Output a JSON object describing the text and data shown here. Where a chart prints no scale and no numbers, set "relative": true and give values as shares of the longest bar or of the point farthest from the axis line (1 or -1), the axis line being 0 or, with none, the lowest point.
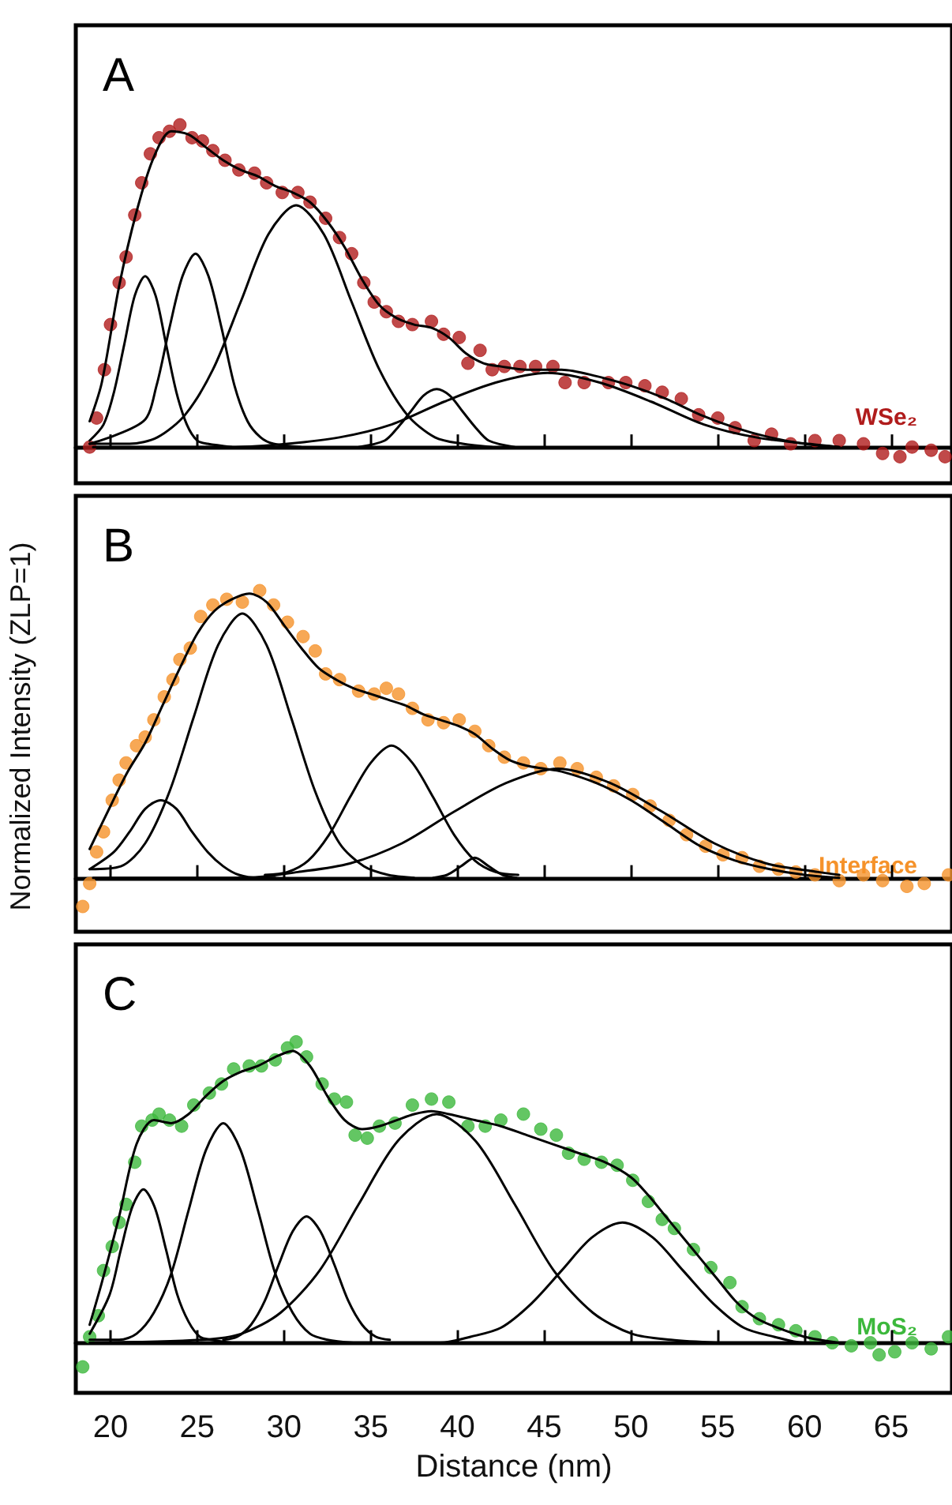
{
  "chart_data": [
    {
      "type": "line",
      "title": "A",
      "relative": true,
      "tick_labels": false,
      "xlim": [
        18,
        68.5
      ],
      "xticks": [
        20,
        25,
        30,
        35,
        40,
        45,
        50,
        55,
        60,
        65
      ],
      "marker": "none",
      "line_style": "solid",
      "series": [
        {
          "type": "scatter",
          "marker": "circle",
          "name": "WSe₂",
          "color": "#b01c1c",
          "x": [
            18.8,
            19.2,
            19.65,
            20,
            20.5,
            20.9,
            21.4,
            21.8,
            22.3,
            22.8,
            23.4,
            24,
            24.7,
            25.3,
            25.9,
            26.6,
            27.4,
            28.3,
            29,
            29.9,
            30.8,
            31.5,
            32.4,
            33.2,
            33.9,
            34.6,
            35.2,
            35.9,
            36.6,
            37.4,
            38.5,
            39.2,
            40.1,
            40.6,
            41.3,
            42,
            42.7,
            43.6,
            44.5,
            45.5,
            46.2,
            47.3,
            48.7,
            49.7,
            50.8,
            51.8,
            52.9,
            53.9,
            55,
            56,
            57.1,
            58.1,
            59.2,
            60.6,
            62,
            63.4,
            64.5,
            65.5,
            66.2,
            67.3,
            68.1
          ],
          "values": [
            0,
            0.09,
            0.24,
            0.38,
            0.51,
            0.59,
            0.72,
            0.82,
            0.91,
            0.96,
            0.98,
            1,
            0.96,
            0.95,
            0.92,
            0.89,
            0.86,
            0.85,
            0.82,
            0.79,
            0.79,
            0.76,
            0.71,
            0.65,
            0.6,
            0.51,
            0.45,
            0.42,
            0.39,
            0.38,
            0.39,
            0.35,
            0.34,
            0.26,
            0.3,
            0.24,
            0.25,
            0.25,
            0.25,
            0.25,
            0.2,
            0.2,
            0.2,
            0.2,
            0.19,
            0.17,
            0.15,
            0.1,
            0.09,
            0.06,
            0.02,
            0.04,
            0.01,
            0.02,
            0.02,
            0.01,
            -0.02,
            -0.03,
            0,
            -0.01,
            -0.03
          ]
        },
        {
          "color": "#000000",
          "x": [
            18.8,
            19.5,
            20.5,
            21.5,
            22.5,
            23.5,
            24.5,
            25.5,
            26.5,
            27.5,
            28.5,
            29.5,
            30.5,
            31.5,
            32.5,
            33.5,
            34.5,
            35.5,
            36.5,
            37.5,
            38.5,
            39.5,
            40.5,
            41.5,
            42.5,
            44,
            46,
            48,
            50,
            52,
            54,
            56,
            58,
            60,
            62
          ],
          "values": [
            0.08,
            0.2,
            0.5,
            0.73,
            0.9,
            0.98,
            0.97,
            0.93,
            0.89,
            0.86,
            0.84,
            0.81,
            0.79,
            0.76,
            0.7,
            0.62,
            0.52,
            0.44,
            0.4,
            0.38,
            0.37,
            0.34,
            0.29,
            0.26,
            0.25,
            0.24,
            0.24,
            0.22,
            0.19,
            0.15,
            0.1,
            0.06,
            0.03,
            0.01,
            0
          ]
        },
        {
          "color": "#000000",
          "x": [
            18.8,
            19.6,
            20.2,
            20.8,
            21.4,
            22,
            22.6,
            23.2,
            23.8,
            24.4,
            25,
            25.6,
            27
          ],
          "values": [
            0.02,
            0.07,
            0.17,
            0.32,
            0.47,
            0.53,
            0.47,
            0.32,
            0.17,
            0.07,
            0.02,
            0.01,
            0
          ]
        },
        {
          "color": "#000000",
          "x": [
            18.8,
            21.9,
            22.65,
            23.4,
            24.15,
            24.9,
            25.65,
            26.4,
            27.15,
            27.9,
            28.65,
            29.4,
            31
          ],
          "values": [
            0.01,
            0.08,
            0.19,
            0.37,
            0.53,
            0.6,
            0.53,
            0.37,
            0.19,
            0.08,
            0.03,
            0.01,
            0
          ]
        },
        {
          "color": "#000000",
          "x": [
            18.8,
            21.1,
            22.7,
            24.3,
            25.9,
            27.5,
            29.1,
            30.7,
            32.3,
            33.9,
            35.5,
            37.1,
            38.7,
            40.3,
            42
          ],
          "values": [
            0.01,
            0.01,
            0.03,
            0.1,
            0.24,
            0.45,
            0.66,
            0.75,
            0.66,
            0.45,
            0.24,
            0.1,
            0.03,
            0.01,
            0
          ]
        },
        {
          "color": "#000000",
          "x": [
            34.3,
            35.8,
            36.55,
            37.3,
            38.05,
            38.8,
            39.55,
            40.3,
            41.05,
            41.8,
            43.3
          ],
          "values": [
            0,
            0.02,
            0.06,
            0.11,
            0.16,
            0.18,
            0.16,
            0.11,
            0.06,
            0.02,
            0
          ]
        },
        {
          "color": "#000000",
          "x": [
            19,
            27.2,
            30.2,
            33.2,
            36.2,
            39.2,
            42.2,
            45.2,
            48.2,
            51.2,
            54.2,
            57.2,
            60.2,
            62
          ],
          "values": [
            0,
            0,
            0.01,
            0.03,
            0.07,
            0.14,
            0.2,
            0.23,
            0.2,
            0.14,
            0.07,
            0.03,
            0.01,
            0
          ]
        }
      ]
    },
    {
      "type": "line",
      "title": "B",
      "ylabel": "Normalized Intensity (ZLP=1)",
      "relative": true,
      "tick_labels": false,
      "xlim": [
        18,
        68.5
      ],
      "xticks": [
        20,
        25,
        30,
        35,
        40,
        45,
        50,
        55,
        60,
        65
      ],
      "marker": "none",
      "line_style": "solid",
      "series": [
        {
          "type": "scatter",
          "marker": "circle",
          "name": "Interface",
          "color": "#f5922a",
          "x": [
            18.4,
            18.8,
            19.2,
            19.6,
            20.1,
            20.5,
            20.9,
            21.5,
            22,
            22.5,
            23.1,
            23.6,
            24,
            24.6,
            25.2,
            25.9,
            26.7,
            27.6,
            28.6,
            29.4,
            30.2,
            31.1,
            31.8,
            32.4,
            33.2,
            34.3,
            35.2,
            35.9,
            36.6,
            37.4,
            38.3,
            39.2,
            40.1,
            41,
            41.8,
            42.7,
            43.8,
            44.8,
            45.9,
            46.9,
            48,
            49,
            50.1,
            51.1,
            52.2,
            53.2,
            54.3,
            55.3,
            56.4,
            57.4,
            58.5,
            59.5,
            60.6,
            62,
            63.4,
            64.5,
            65.9,
            66.9,
            68.3
          ],
          "values": [
            -0.1,
            -0.02,
            0.09,
            0.16,
            0.27,
            0.34,
            0.4,
            0.46,
            0.49,
            0.55,
            0.63,
            0.69,
            0.76,
            0.8,
            0.91,
            0.95,
            0.97,
            0.96,
            1,
            0.95,
            0.89,
            0.84,
            0.79,
            0.71,
            0.69,
            0.65,
            0.64,
            0.66,
            0.64,
            0.59,
            0.55,
            0.54,
            0.55,
            0.51,
            0.46,
            0.42,
            0.4,
            0.38,
            0.4,
            0.38,
            0.35,
            0.32,
            0.29,
            0.25,
            0.2,
            0.15,
            0.11,
            0.08,
            0.07,
            0.04,
            0.03,
            0.02,
            0.01,
            -0.01,
            0.01,
            -0.01,
            -0.03,
            -0.02,
            0.01
          ]
        },
        {
          "color": "#000000",
          "x": [
            18.8,
            20,
            21,
            22,
            23,
            24,
            25,
            26,
            27,
            28,
            29,
            30,
            31,
            32,
            33,
            34,
            35,
            36,
            37,
            38,
            39,
            40,
            41,
            42,
            43,
            44,
            45,
            46,
            48,
            50,
            52,
            54,
            56,
            58,
            60,
            62
          ],
          "values": [
            0.1,
            0.25,
            0.37,
            0.47,
            0.6,
            0.73,
            0.85,
            0.93,
            0.97,
            0.99,
            0.96,
            0.88,
            0.8,
            0.73,
            0.69,
            0.66,
            0.64,
            0.62,
            0.6,
            0.57,
            0.55,
            0.53,
            0.5,
            0.45,
            0.41,
            0.39,
            0.38,
            0.37,
            0.33,
            0.27,
            0.19,
            0.11,
            0.06,
            0.03,
            0.01,
            0
          ]
        },
        {
          "color": "#000000",
          "x": [
            18.8,
            20.2,
            21.1,
            22,
            22.9,
            23.8,
            24.7,
            25.6,
            26.5,
            27.4,
            28.5,
            29.5
          ],
          "values": [
            0.03,
            0.09,
            0.16,
            0.24,
            0.27,
            0.24,
            0.16,
            0.09,
            0.04,
            0.01,
            0,
            0
          ]
        },
        {
          "color": "#000000",
          "x": [
            18.8,
            20.6,
            22,
            23.4,
            24.8,
            26.2,
            27.6,
            29,
            30.4,
            31.8,
            33.2,
            34.6,
            36,
            37.5
          ],
          "values": [
            0.03,
            0.04,
            0.12,
            0.3,
            0.56,
            0.81,
            0.92,
            0.81,
            0.56,
            0.3,
            0.12,
            0.04,
            0.01,
            0
          ]
        },
        {
          "color": "#000000",
          "x": [
            28.9,
            30.2,
            31.4,
            32.6,
            33.8,
            35,
            36.2,
            37.4,
            38.6,
            39.8,
            41,
            42.2,
            43.5
          ],
          "values": [
            0.01,
            0.02,
            0.06,
            0.15,
            0.28,
            0.4,
            0.46,
            0.4,
            0.28,
            0.15,
            0.06,
            0.02,
            0.01
          ]
        },
        {
          "color": "#000000",
          "x": [
            38.6,
            39.4,
            40.2,
            41,
            41.8,
            42.6,
            43.4
          ],
          "values": [
            0,
            0.01,
            0.04,
            0.07,
            0.04,
            0.01,
            0
          ]
        },
        {
          "color": "#000000",
          "x": [
            19,
            27.8,
            30.8,
            33.8,
            36.8,
            39.8,
            42.8,
            45.8,
            48.8,
            51.8,
            54.8,
            57.8,
            60.8,
            62
          ],
          "values": [
            0,
            0,
            0.02,
            0.05,
            0.12,
            0.23,
            0.33,
            0.38,
            0.33,
            0.23,
            0.12,
            0.05,
            0.02,
            0.01
          ]
        }
      ]
    },
    {
      "type": "line",
      "title": "C",
      "xlabel": "Distance (nm)",
      "relative": true,
      "tick_labels": "x",
      "xlim": [
        18,
        68.5
      ],
      "xticks": [
        20,
        25,
        30,
        35,
        40,
        45,
        50,
        55,
        60,
        65
      ],
      "marker": "none",
      "line_style": "solid",
      "series": [
        {
          "type": "scatter",
          "marker": "circle",
          "name": "MoS₂",
          "color": "#3cb83c",
          "x": [
            18.4,
            18.8,
            19.3,
            19.6,
            20.1,
            20.5,
            20.9,
            21.4,
            21.8,
            22.4,
            22.8,
            23.4,
            24.1,
            24.8,
            25.7,
            26.4,
            27.1,
            28,
            28.7,
            29.5,
            30.2,
            30.7,
            31.3,
            32.2,
            32.9,
            33.6,
            34.1,
            34.8,
            35.5,
            36.4,
            37.4,
            38.5,
            39.5,
            40.6,
            41.6,
            42.5,
            43.8,
            44.8,
            45.7,
            46.4,
            47.3,
            48.3,
            49.2,
            50.1,
            51,
            51.8,
            52.5,
            53.6,
            54.6,
            55.7,
            56.4,
            57.4,
            58.5,
            59.5,
            60.6,
            61.6,
            62.7,
            63.8,
            64.3,
            65.2,
            66.2,
            67.3,
            68.3
          ],
          "values": [
            -0.08,
            0.02,
            0.09,
            0.24,
            0.32,
            0.4,
            0.46,
            0.6,
            0.72,
            0.74,
            0.76,
            0.74,
            0.72,
            0.79,
            0.83,
            0.86,
            0.91,
            0.92,
            0.92,
            0.94,
            0.98,
            1,
            0.95,
            0.86,
            0.81,
            0.8,
            0.69,
            0.68,
            0.72,
            0.73,
            0.79,
            0.81,
            0.8,
            0.72,
            0.72,
            0.74,
            0.76,
            0.71,
            0.69,
            0.63,
            0.61,
            0.6,
            0.59,
            0.54,
            0.47,
            0.41,
            0.38,
            0.31,
            0.25,
            0.2,
            0.12,
            0.08,
            0.06,
            0.04,
            0.02,
            0,
            -0.01,
            0,
            -0.04,
            -0.03,
            0,
            -0.02,
            0.02
          ]
        },
        {
          "color": "#000000",
          "x": [
            18.8,
            19.5,
            20.5,
            21.5,
            22.5,
            23.5,
            24.5,
            25.5,
            26.5,
            27.5,
            28.5,
            29.5,
            30.5,
            31.5,
            32.5,
            33.5,
            34.5,
            35.5,
            36.5,
            37.5,
            38.5,
            39.5,
            41,
            42.5,
            44,
            45.5,
            47,
            48.5,
            50,
            51,
            52,
            53,
            54,
            55,
            56,
            57,
            58,
            60,
            62
          ],
          "values": [
            0.06,
            0.2,
            0.42,
            0.66,
            0.74,
            0.73,
            0.76,
            0.82,
            0.87,
            0.9,
            0.92,
            0.95,
            0.97,
            0.92,
            0.82,
            0.74,
            0.71,
            0.72,
            0.74,
            0.76,
            0.77,
            0.76,
            0.74,
            0.72,
            0.69,
            0.66,
            0.63,
            0.6,
            0.55,
            0.49,
            0.42,
            0.35,
            0.28,
            0.21,
            0.14,
            0.09,
            0.06,
            0.02,
            0
          ]
        },
        {
          "color": "#000000",
          "x": [
            18.8,
            19.95,
            20.6,
            21.25,
            21.9,
            22.55,
            23.2,
            23.85,
            24.5,
            25.15,
            25.8,
            27
          ],
          "values": [
            0.03,
            0.16,
            0.31,
            0.45,
            0.51,
            0.45,
            0.31,
            0.16,
            0.07,
            0.02,
            0.01,
            0
          ]
        },
        {
          "color": "#000000",
          "x": [
            18.8,
            20.5,
            21.5,
            22.5,
            23.5,
            24.5,
            25.5,
            26.5,
            27.5,
            28.5,
            29.5,
            30.5,
            31.5,
            32.5,
            34
          ],
          "values": [
            0.01,
            0.01,
            0.03,
            0.1,
            0.23,
            0.44,
            0.64,
            0.73,
            0.64,
            0.44,
            0.23,
            0.1,
            0.03,
            0.01,
            0
          ]
        },
        {
          "color": "#000000",
          "x": [
            26.5,
            27.3,
            28.1,
            28.9,
            29.7,
            30.5,
            31.3,
            32.1,
            32.9,
            33.7,
            34.5,
            35.3,
            36.1
          ],
          "values": [
            0.01,
            0.02,
            0.06,
            0.14,
            0.26,
            0.37,
            0.42,
            0.37,
            0.26,
            0.14,
            0.06,
            0.02,
            0.01
          ]
        },
        {
          "color": "#000000",
          "x": [
            18.8,
            25.3,
            27.55,
            29.8,
            32.05,
            34.3,
            36.55,
            38.8,
            41.05,
            43.3,
            45.55,
            47.8,
            50.05,
            52.3,
            55
          ],
          "values": [
            0,
            0.01,
            0.03,
            0.1,
            0.24,
            0.46,
            0.67,
            0.76,
            0.67,
            0.46,
            0.24,
            0.1,
            0.03,
            0.01,
            0
          ]
        },
        {
          "color": "#000000",
          "x": [
            37,
            39,
            40.75,
            42.5,
            44.25,
            46,
            47.75,
            49.5,
            51.25,
            53,
            54.75,
            56.5,
            58.25,
            60,
            62
          ],
          "values": [
            0,
            0,
            0.02,
            0.05,
            0.13,
            0.24,
            0.35,
            0.4,
            0.35,
            0.24,
            0.13,
            0.05,
            0.02,
            0,
            0
          ]
        }
      ]
    }
  ]
}
